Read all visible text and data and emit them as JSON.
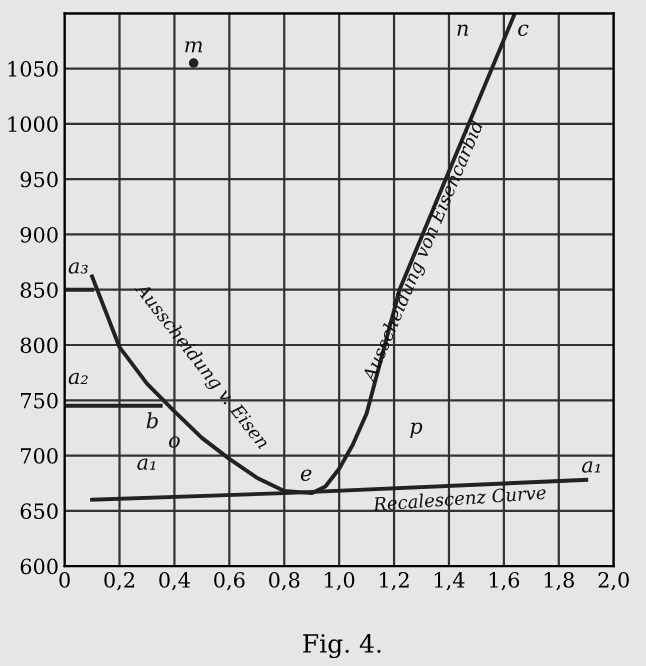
{
  "chart_data": {
    "type": "line",
    "series": [
      {
        "color": "#222222",
        "x": [
          0.1,
          0.15,
          0.2,
          0.3,
          0.4,
          0.5,
          0.6,
          0.7,
          0.8,
          0.9,
          0.95,
          1.0,
          1.05,
          1.1,
          1.22,
          1.64
        ],
        "values": [
          862,
          830,
          798,
          765,
          740,
          716,
          697,
          680,
          668,
          666,
          672,
          688,
          710,
          738,
          850,
          1100
        ]
      },
      {
        "color": "#222222",
        "x": [
          0.1,
          0.8,
          1.9
        ],
        "values": [
          660,
          666,
          678
        ]
      },
      {
        "color": "#222222",
        "x": [
          0.0,
          0.35
        ],
        "values": [
          745,
          745
        ]
      },
      {
        "color": "#222222",
        "x": [
          0.0,
          0.1
        ],
        "values": [
          850,
          850
        ]
      },
      {
        "type": "scatter",
        "color": "#222222",
        "x": [
          0.47
        ],
        "values": [
          1055
        ]
      }
    ],
    "xlim": [
      0,
      2.0
    ],
    "ylim": [
      600,
      1100
    ],
    "xticks": [
      0,
      {
        "value": 0.2,
        "label": "0,2"
      },
      {
        "value": 0.4,
        "label": "0,4"
      },
      {
        "value": 0.6,
        "label": "0,6"
      },
      {
        "value": 0.8,
        "label": "0,8"
      },
      {
        "value": 1.0,
        "label": "1,0"
      },
      {
        "value": 1.2,
        "label": "1,2"
      },
      {
        "value": 1.4,
        "label": "1,4"
      },
      {
        "value": 1.6,
        "label": "1,6"
      },
      {
        "value": 1.8,
        "label": "1,8"
      },
      {
        "value": 2.0,
        "label": "2,0"
      }
    ],
    "yticks": [
      600,
      650,
      700,
      750,
      800,
      850,
      900,
      950,
      1000,
      1050,
      {
        "value": 1100,
        "label": null
      }
    ],
    "grid": true,
    "marker": "none",
    "annotations": [
      "Ausscheidung v. Eisen",
      "Ausscheidung von Eisencarbid",
      "Recalescenz Curve",
      "a₁",
      "a₁",
      "a₂",
      "a₃",
      "m",
      "n",
      "c",
      "p",
      "e",
      "b",
      "o",
      "Fig. 4."
    ]
  }
}
